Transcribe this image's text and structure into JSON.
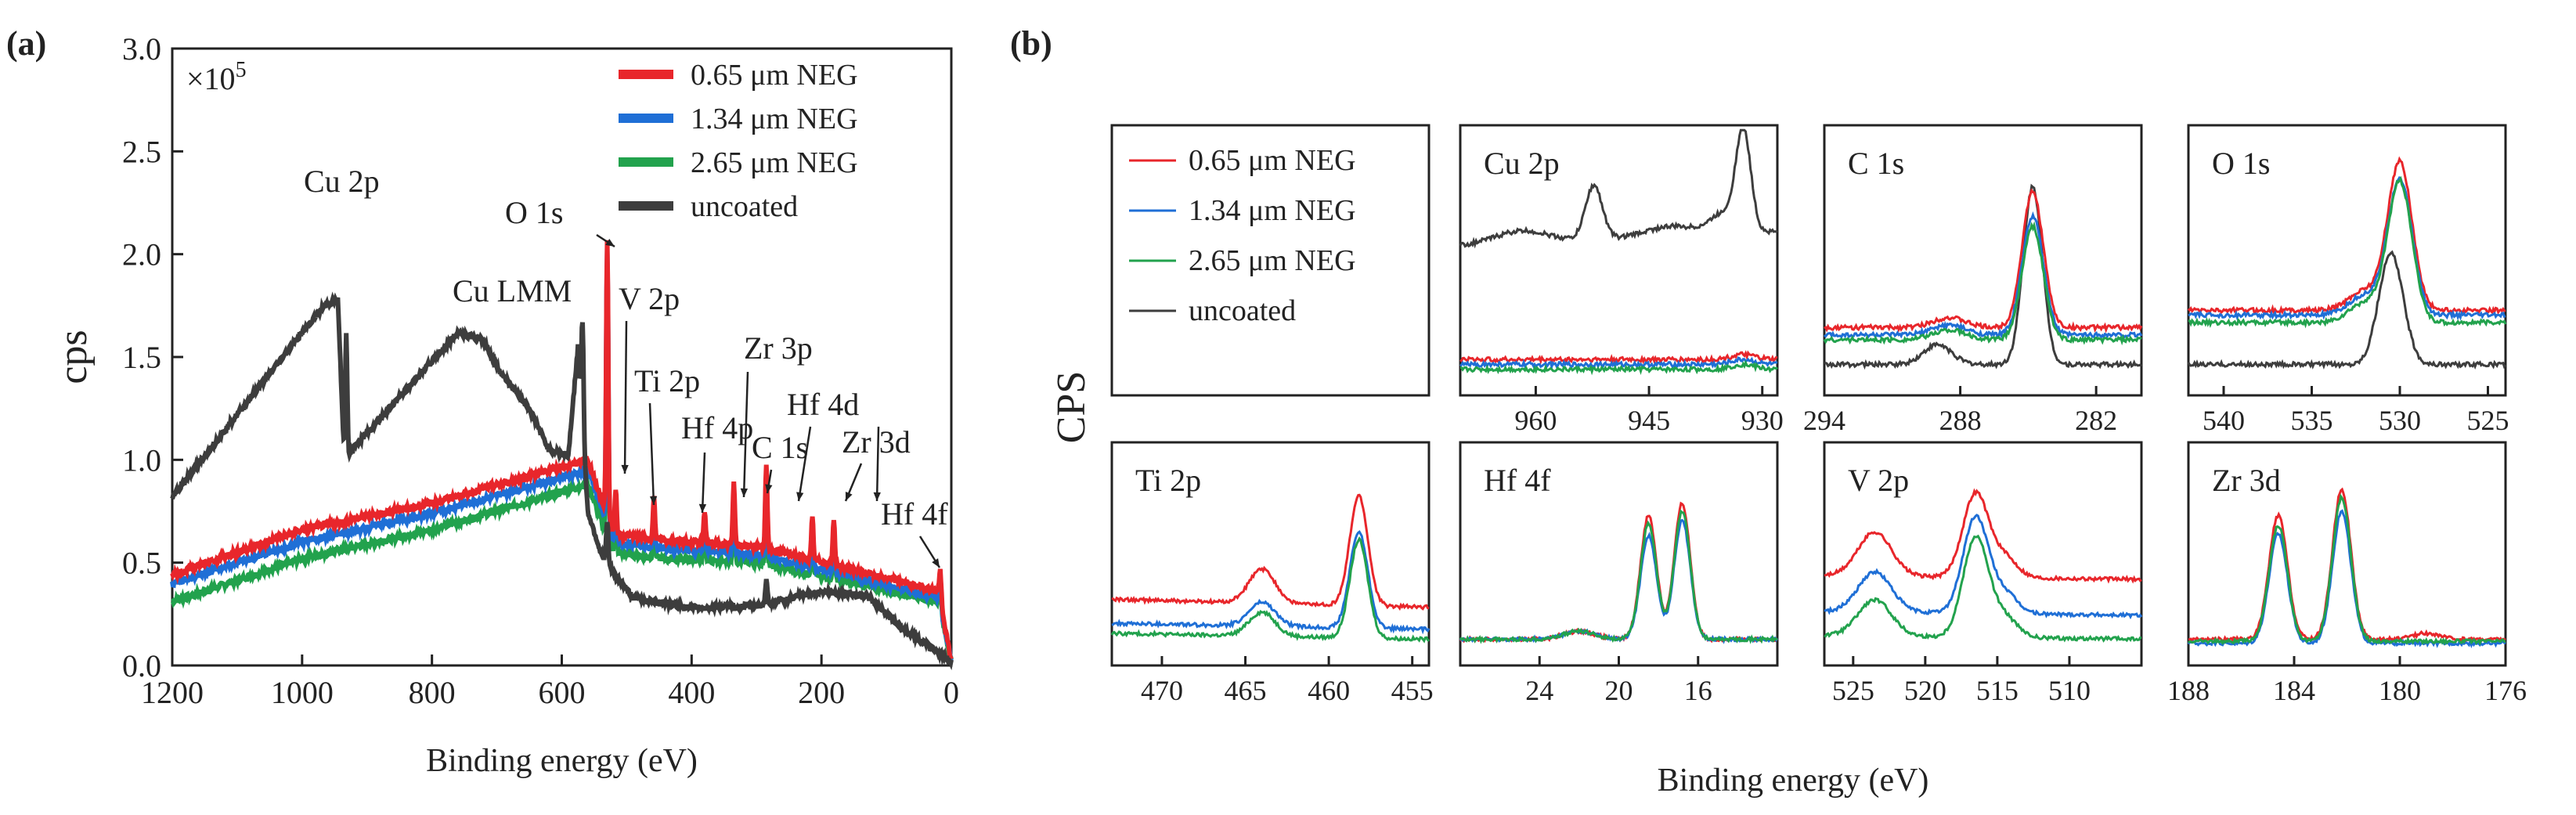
{
  "colors": {
    "red": "#e8262b",
    "blue": "#1f6fd6",
    "green": "#22a24d",
    "gray": "#3d3d3d"
  },
  "panel_a": {
    "tag": "(a)",
    "multiplier": "×10",
    "multiplier_exp": "5"
  },
  "panel_b": {
    "tag": "(b)",
    "ylabel": "CPS",
    "xlabel": "Binding energy (eV)"
  },
  "chart_data": [
    {
      "type": "line",
      "id": "survey",
      "title": "",
      "xlabel": "Binding energy (eV)",
      "ylabel": "cps",
      "xlim": [
        1200,
        0
      ],
      "ylim": [
        0,
        3.0
      ],
      "xticks": [
        1200,
        1000,
        800,
        600,
        400,
        200,
        0
      ],
      "yticks": [
        "0.0",
        "0.5",
        "1.0",
        "1.5",
        "2.0",
        "2.5",
        "3.0"
      ],
      "legend_position": "top-right",
      "series": [
        {
          "name": "0.65 μm NEG",
          "color": "#e8262b",
          "base": [
            [
              1200,
              0.44
            ],
            [
              1000,
              0.66
            ],
            [
              800,
              0.79
            ],
            [
              560,
              1.0
            ],
            [
              520,
              0.64
            ],
            [
              450,
              0.61
            ],
            [
              300,
              0.58
            ],
            [
              180,
              0.49
            ],
            [
              20,
              0.36
            ],
            [
              0,
              0.02
            ]
          ],
          "offset": 0.0
        },
        {
          "name": "1.34 μm NEG",
          "color": "#1f6fd6",
          "base": [
            [
              1200,
              0.4
            ],
            [
              1000,
              0.6
            ],
            [
              800,
              0.74
            ],
            [
              560,
              0.95
            ],
            [
              520,
              0.6
            ],
            [
              450,
              0.57
            ],
            [
              300,
              0.54
            ],
            [
              180,
              0.45
            ],
            [
              20,
              0.33
            ],
            [
              0,
              0.02
            ]
          ],
          "offset": 0.0
        },
        {
          "name": "2.65 μm NEG",
          "color": "#22a24d",
          "base": [
            [
              1200,
              0.31
            ],
            [
              1000,
              0.52
            ],
            [
              800,
              0.66
            ],
            [
              560,
              0.88
            ],
            [
              520,
              0.55
            ],
            [
              450,
              0.52
            ],
            [
              300,
              0.5
            ],
            [
              180,
              0.42
            ],
            [
              20,
              0.31
            ],
            [
              0,
              0.02
            ]
          ],
          "offset": 0.0
        },
        {
          "name": "uncoated",
          "color": "#3d3d3d",
          "base": [
            [
              1200,
              0.82
            ],
            [
              1000,
              1.62
            ],
            [
              965,
              1.75
            ],
            [
              945,
              1.78
            ],
            [
              935,
              1.0
            ],
            [
              920,
              1.06
            ],
            [
              800,
              1.48
            ],
            [
              760,
              1.62
            ],
            [
              720,
              1.58
            ],
            [
              700,
              1.45
            ],
            [
              650,
              1.25
            ],
            [
              620,
              1.05
            ],
            [
              590,
              1.02
            ],
            [
              575,
              1.55
            ],
            [
              560,
              0.75
            ],
            [
              540,
              0.55
            ],
            [
              520,
              0.45
            ],
            [
              490,
              0.33
            ],
            [
              400,
              0.28
            ],
            [
              300,
              0.29
            ],
            [
              200,
              0.36
            ],
            [
              130,
              0.34
            ],
            [
              100,
              0.25
            ],
            [
              70,
              0.17
            ],
            [
              0,
              0.02
            ]
          ],
          "offset": 0.0
        }
      ],
      "peaks_coated": [
        {
          "label": "V 2p",
          "x": 517,
          "h": 0.22
        },
        {
          "label": "Ti 2p",
          "x": 458,
          "h": 0.2
        },
        {
          "label": "Hf 4p",
          "x": 380,
          "h": 0.15
        },
        {
          "label": "Zr 3p",
          "x": 335,
          "h": 0.3
        },
        {
          "label": "C 1s",
          "x": 285,
          "h": 0.4
        },
        {
          "label": "Hf 4d",
          "x": 214,
          "h": 0.2
        },
        {
          "label": "Zr 3d",
          "x": 181,
          "h": 0.22
        },
        {
          "label": "O 1s",
          "x": 530,
          "h": 1.35
        },
        {
          "label": "Hf 4f",
          "x": 17,
          "h": 0.15
        }
      ],
      "peaks_uncoated": [
        {
          "label": "Cu 2p",
          "x": 932,
          "h": 0.6
        },
        {
          "label": "Cu LMM",
          "x": 568,
          "h": 0.5
        },
        {
          "label": "O 1s",
          "x": 530,
          "h": 0.2
        },
        {
          "label": "C 1s",
          "x": 285,
          "h": 0.12
        }
      ],
      "annotations": [
        "Cu 2p",
        "O 1s",
        "Cu LMM",
        "V 2p",
        "Zr 3p",
        "Ti 2p",
        "Hf 4d",
        "Hf 4p",
        "C 1s",
        "Zr 3d",
        "Hf 4f"
      ]
    },
    {
      "type": "line",
      "id": "Cu 2p",
      "title": "Cu 2p",
      "xlim": [
        970,
        928
      ],
      "xticks": [
        960,
        945,
        930
      ],
      "series": [
        {
          "name": "uncoated",
          "color": "#3d3d3d",
          "baseline": 0.58,
          "peaks": [
            [
              932.5,
              0.4,
              0.6
            ],
            [
              952.3,
              0.22,
              0.7
            ],
            [
              962,
              0.05,
              2.5
            ],
            [
              942,
              0.04,
              2.5
            ],
            [
              935,
              0.08,
              1.2
            ]
          ],
          "slope": 0.06
        },
        {
          "name": "0.65 μm NEG",
          "color": "#e8262b",
          "baseline": 0.12,
          "peaks": [
            [
              932.5,
              0.02,
              1
            ]
          ],
          "slope": 0.0
        },
        {
          "name": "1.34 μm NEG",
          "color": "#1f6fd6",
          "baseline": 0.1,
          "peaks": [
            [
              932.5,
              0.02,
              1
            ]
          ],
          "slope": 0.0
        },
        {
          "name": "2.65 μm NEG",
          "color": "#22a24d",
          "baseline": 0.08,
          "peaks": [
            [
              932.5,
              0.02,
              1
            ]
          ],
          "slope": 0.0
        }
      ]
    },
    {
      "type": "line",
      "id": "C 1s",
      "title": "C 1s",
      "xlim": [
        294,
        280
      ],
      "xticks": [
        294,
        288,
        282
      ],
      "series": [
        {
          "name": "uncoated",
          "color": "#3d3d3d",
          "baseline": 0.1,
          "peaks": [
            [
              284.8,
              0.72,
              0.55
            ],
            [
              289,
              0.08,
              1.0
            ]
          ],
          "slope": 0.0
        },
        {
          "name": "0.65 μm NEG",
          "color": "#e8262b",
          "baseline": 0.25,
          "peaks": [
            [
              284.8,
              0.55,
              0.65
            ],
            [
              288.5,
              0.04,
              1.2
            ]
          ],
          "slope": 0.0
        },
        {
          "name": "1.34 μm NEG",
          "color": "#1f6fd6",
          "baseline": 0.22,
          "peaks": [
            [
              284.8,
              0.48,
              0.65
            ],
            [
              288.5,
              0.04,
              1.2
            ]
          ],
          "slope": 0.0
        },
        {
          "name": "2.65 μm NEG",
          "color": "#22a24d",
          "baseline": 0.2,
          "peaks": [
            [
              284.8,
              0.46,
              0.65
            ],
            [
              288.5,
              0.04,
              1.2
            ]
          ],
          "slope": 0.0
        }
      ]
    },
    {
      "type": "line",
      "id": "O 1s",
      "title": "O 1s",
      "xlim": [
        542,
        524
      ],
      "xticks": [
        540,
        535,
        530,
        525
      ],
      "series": [
        {
          "name": "uncoated",
          "color": "#3d3d3d",
          "baseline": 0.1,
          "peaks": [
            [
              530.5,
              0.45,
              0.9
            ]
          ],
          "slope": 0.0
        },
        {
          "name": "0.65 μm NEG",
          "color": "#e8262b",
          "baseline": 0.32,
          "peaks": [
            [
              530,
              0.6,
              0.9
            ],
            [
              532,
              0.08,
              1.2
            ]
          ],
          "slope": 0.0
        },
        {
          "name": "1.34 μm NEG",
          "color": "#1f6fd6",
          "baseline": 0.3,
          "peaks": [
            [
              530,
              0.55,
              0.9
            ],
            [
              532,
              0.08,
              1.2
            ]
          ],
          "slope": 0.0
        },
        {
          "name": "2.65 μm NEG",
          "color": "#22a24d",
          "baseline": 0.27,
          "peaks": [
            [
              530,
              0.57,
              0.9
            ],
            [
              532,
              0.08,
              1.2
            ]
          ],
          "slope": 0.0
        }
      ]
    },
    {
      "type": "line",
      "id": "Ti 2p",
      "title": "Ti 2p",
      "xlim": [
        473,
        454
      ],
      "xticks": [
        470,
        465,
        460,
        455
      ],
      "series": [
        {
          "name": "0.65 μm NEG",
          "color": "#e8262b",
          "baseline": 0.3,
          "peaks": [
            [
              458.2,
              0.55,
              0.6
            ],
            [
              464,
              0.17,
              1.0
            ]
          ],
          "slope": -0.04
        },
        {
          "name": "1.34 μm NEG",
          "color": "#1f6fd6",
          "baseline": 0.18,
          "peaks": [
            [
              458.2,
              0.48,
              0.6
            ],
            [
              464,
              0.12,
              1.0
            ]
          ],
          "slope": -0.03
        },
        {
          "name": "2.65 μm NEG",
          "color": "#22a24d",
          "baseline": 0.13,
          "peaks": [
            [
              458.2,
              0.49,
              0.6
            ],
            [
              464,
              0.12,
              1.0
            ]
          ],
          "slope": -0.03
        }
      ]
    },
    {
      "type": "line",
      "id": "Hf 4f",
      "title": "Hf 4f",
      "xlim": [
        28,
        12
      ],
      "xticks": [
        24,
        20,
        16
      ],
      "series": [
        {
          "name": "0.65 μm NEG",
          "color": "#e8262b",
          "baseline": 0.1,
          "peaks": [
            [
              18.5,
              0.62,
              0.45
            ],
            [
              16.8,
              0.68,
              0.45
            ],
            [
              22,
              0.04,
              1.2
            ]
          ],
          "slope": 0.0
        },
        {
          "name": "1.34 μm NEG",
          "color": "#1f6fd6",
          "baseline": 0.1,
          "peaks": [
            [
              18.5,
              0.52,
              0.45
            ],
            [
              16.8,
              0.6,
              0.45
            ],
            [
              22,
              0.04,
              1.2
            ]
          ],
          "slope": 0.0
        },
        {
          "name": "2.65 μm NEG",
          "color": "#22a24d",
          "baseline": 0.1,
          "peaks": [
            [
              18.5,
              0.58,
              0.45
            ],
            [
              16.8,
              0.64,
              0.45
            ],
            [
              22,
              0.04,
              1.2
            ]
          ],
          "slope": 0.0
        }
      ]
    },
    {
      "type": "line",
      "id": "V 2p",
      "title": "V 2p",
      "xlim": [
        527,
        505
      ],
      "xticks": [
        525,
        520,
        515,
        510
      ],
      "series": [
        {
          "name": "0.65 μm NEG",
          "color": "#e8262b",
          "baseline": 0.42,
          "peaks": [
            [
              516.5,
              0.42,
              1.0
            ],
            [
              523.5,
              0.22,
              1.4
            ],
            [
              514.5,
              0.1,
              1.0
            ]
          ],
          "slope": -0.02
        },
        {
          "name": "1.34 μm NEG",
          "color": "#1f6fd6",
          "baseline": 0.24,
          "peaks": [
            [
              516.5,
              0.48,
              1.0
            ],
            [
              523.5,
              0.2,
              1.4
            ],
            [
              514.5,
              0.1,
              1.0
            ]
          ],
          "slope": -0.02
        },
        {
          "name": "2.65 μm NEG",
          "color": "#22a24d",
          "baseline": 0.12,
          "peaks": [
            [
              516.5,
              0.5,
              1.0
            ],
            [
              523.5,
              0.18,
              1.4
            ],
            [
              514.5,
              0.1,
              1.0
            ]
          ],
          "slope": -0.02
        }
      ]
    },
    {
      "type": "line",
      "id": "Zr 3d",
      "title": "Zr 3d",
      "xlim": [
        188,
        176
      ],
      "xticks": [
        188,
        184,
        180,
        176
      ],
      "series": [
        {
          "name": "0.65 μm NEG",
          "color": "#e8262b",
          "baseline": 0.1,
          "peaks": [
            [
              184.6,
              0.62,
              0.45
            ],
            [
              182.2,
              0.75,
              0.45
            ],
            [
              179,
              0.03,
              0.8
            ]
          ],
          "slope": 0.0
        },
        {
          "name": "1.34 μm NEG",
          "color": "#1f6fd6",
          "baseline": 0.08,
          "peaks": [
            [
              184.6,
              0.55,
              0.45
            ],
            [
              182.2,
              0.66,
              0.45
            ]
          ],
          "slope": 0.0
        },
        {
          "name": "2.65 μm NEG",
          "color": "#22a24d",
          "baseline": 0.09,
          "peaks": [
            [
              184.6,
              0.58,
              0.45
            ],
            [
              182.2,
              0.72,
              0.45
            ]
          ],
          "slope": 0.0
        }
      ]
    }
  ],
  "legend_b": [
    "0.65 μm NEG",
    "1.34 μm NEG",
    "2.65 μm NEG",
    "uncoated"
  ]
}
